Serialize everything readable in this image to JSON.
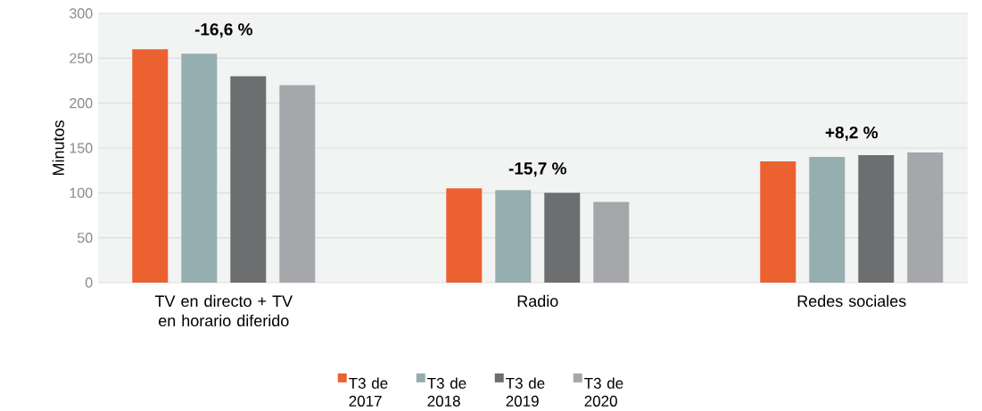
{
  "chart_data": {
    "type": "bar",
    "ylabel": "Minutos",
    "categories": [
      "TV en directo + TV en horario diferido",
      "Radio",
      "Redes sociales"
    ],
    "series": [
      {
        "name": "T3 de 2017",
        "color": "#eb6130",
        "values": [
          260,
          105,
          135
        ]
      },
      {
        "name": "T3 de 2018",
        "color": "#95aeaf",
        "values": [
          255,
          103,
          140
        ]
      },
      {
        "name": "T3 de 2019",
        "color": "#6d6e70",
        "values": [
          230,
          100,
          142
        ]
      },
      {
        "name": "T3 de 2020",
        "color": "#a6a7ab",
        "values": [
          220,
          90,
          145
        ]
      }
    ],
    "ylim": [
      0,
      300
    ],
    "yticks": [
      0,
      50,
      100,
      150,
      200,
      250,
      300
    ],
    "grid": "y",
    "legend": "bottom",
    "annotations": [
      "-16,6 %",
      "-15,7 %",
      "+8,2 %"
    ]
  }
}
